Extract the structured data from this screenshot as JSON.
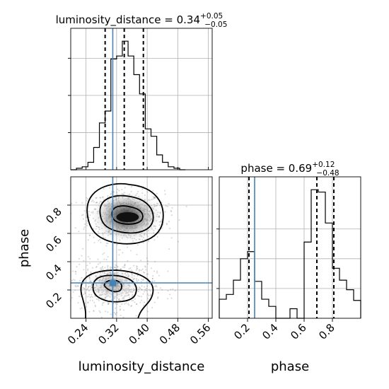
{
  "chart_data": {
    "type": "corner",
    "parameters": [
      "luminosity_distance",
      "phase"
    ],
    "truths": {
      "luminosity_distance": 0.31,
      "phase": 0.25
    },
    "titles": [
      {
        "name": "luminosity_distance",
        "median": "0.34",
        "plus": "+0.05",
        "minus": "−0.05"
      },
      {
        "name": "phase",
        "median": "0.69",
        "plus": "+0.12",
        "minus": "−0.48"
      }
    ],
    "hist_luminosity_distance": {
      "range": [
        0.2,
        0.57
      ],
      "bin_edges": [
        0.2,
        0.215,
        0.23,
        0.245,
        0.26,
        0.275,
        0.29,
        0.305,
        0.32,
        0.335,
        0.35,
        0.365,
        0.38,
        0.395,
        0.41,
        0.425,
        0.44,
        0.455,
        0.47,
        0.485,
        0.5
      ],
      "counts": [
        0,
        2,
        4,
        10,
        30,
        63,
        79,
        149,
        153,
        173,
        153,
        128,
        102,
        55,
        45,
        20,
        10,
        4,
        2,
        0
      ],
      "quantiles": [
        0.29,
        0.34,
        0.39
      ]
    },
    "hist_phase": {
      "range": [
        0.0,
        1.0
      ],
      "bin_edges": [
        0.0,
        0.05,
        0.1,
        0.15,
        0.2,
        0.25,
        0.3,
        0.35,
        0.4,
        0.45,
        0.5,
        0.55,
        0.6,
        0.65,
        0.7,
        0.75,
        0.8,
        0.85,
        0.9,
        0.95,
        1.0
      ],
      "counts": [
        16,
        20,
        32,
        50,
        56,
        31,
        16,
        10,
        0,
        0,
        8,
        0,
        64,
        108,
        106,
        80,
        42,
        32,
        24,
        15
      ],
      "quantiles": [
        0.21,
        0.69,
        0.81
      ]
    },
    "scatter_2d": {
      "xlim": [
        0.2,
        0.57
      ],
      "ylim": [
        0.0,
        1.0
      ],
      "modes": [
        {
          "center": [
            0.345,
            0.72
          ],
          "peak": [
            0.345,
            0.72
          ]
        },
        {
          "center": [
            0.31,
            0.23
          ],
          "peak": [
            0.31,
            0.24
          ]
        }
      ]
    },
    "x_ticks_lum": [
      "0.24",
      "0.32",
      "0.40",
      "0.48",
      "0.56"
    ],
    "x_tick_values_lum": [
      0.24,
      0.32,
      0.4,
      0.48,
      0.56
    ],
    "y_ticks_phase": [
      "0.2",
      "0.4",
      "0.6",
      "0.8"
    ],
    "y_tick_values_phase": [
      0.2,
      0.4,
      0.6,
      0.8
    ],
    "x_ticks_phase": [
      "0.2",
      "0.4",
      "0.6",
      "0.8"
    ],
    "x_tick_values_phase": [
      0.2,
      0.4,
      0.6,
      0.8
    ],
    "xlabel_lum": "luminosity_distance",
    "xlabel_phase": "phase",
    "ylabel_phase": "phase",
    "colors": {
      "truth": "#4682b4",
      "hist": "#000000",
      "scatter": "#888888"
    }
  }
}
